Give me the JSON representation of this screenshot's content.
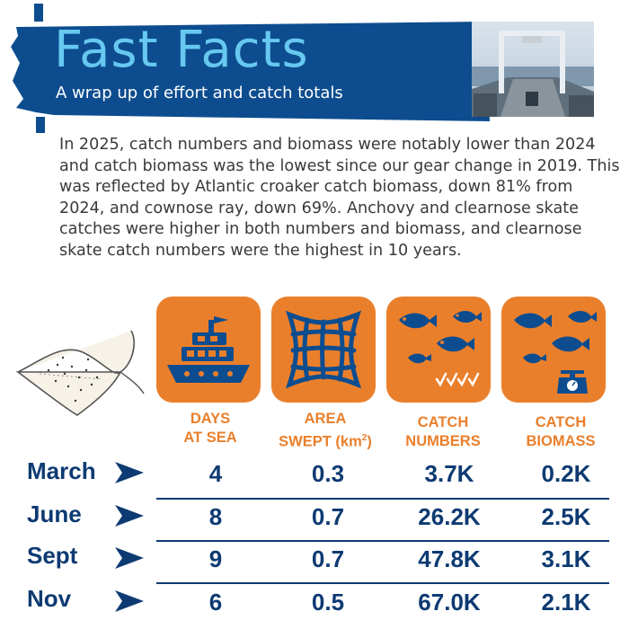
{
  "header": {
    "title": "Fast Facts",
    "subtitle": "A wrap up of effort and catch totals"
  },
  "intro_text": "In 2025, catch numbers and biomass were notably lower than 2024 and catch biomass was the lowest since our gear change in 2019.   This was reflected by Atlantic croaker catch biomass, down 81% from 2024, and cownose ray, down 69%.  Anchovy and clearnose skate catches were higher in both numbers and biomass, and clearnose skate catch numbers were the highest in 10 years.",
  "columns": {
    "days": {
      "line1": "DAYS",
      "line2": "AT SEA"
    },
    "area": {
      "line1": "AREA",
      "line2": "SWEPT (km",
      "sup": "2",
      "close": ")"
    },
    "numbers": {
      "line1": "CATCH",
      "line2": "NUMBERS"
    },
    "biomass": {
      "line1": "CATCH",
      "line2": "BIOMASS"
    }
  },
  "rows": [
    {
      "month": "March",
      "days": "4",
      "area": "0.3",
      "numbers": "3.7K",
      "biomass": "0.2K"
    },
    {
      "month": "June",
      "days": "8",
      "area": "0.7",
      "numbers": "26.2K",
      "biomass": "2.5K"
    },
    {
      "month": "Sept",
      "days": "9",
      "area": "0.7",
      "numbers": "47.8K",
      "biomass": "3.1K"
    },
    {
      "month": "Nov",
      "days": "6",
      "area": "0.5",
      "numbers": "67.0K",
      "biomass": "2.1K"
    }
  ],
  "colors": {
    "navy": "#0d3a72",
    "orange": "#ea7f2b",
    "title_blue": "#67c8f0"
  },
  "icons": [
    "ship-icon",
    "net-icon",
    "fish-count-icon",
    "fish-scale-icon",
    "skate-illustration"
  ]
}
